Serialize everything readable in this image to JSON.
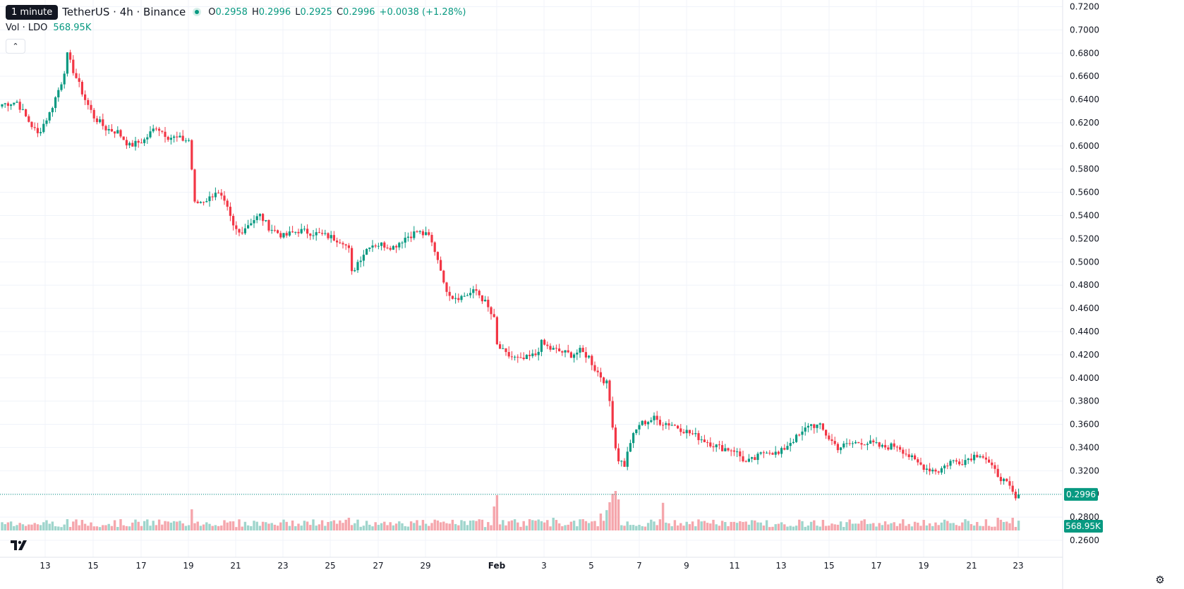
{
  "legend": {
    "tooltip": "1 minute",
    "symbol": "TetherUS · 4h · Binance",
    "open_label": "O",
    "open": "0.2958",
    "high_label": "H",
    "high": "0.2996",
    "low_label": "L",
    "low": "0.2925",
    "close_label": "C",
    "close": "0.2996",
    "change": "+0.0038 (+1.28%)"
  },
  "volume": {
    "label": "Vol · LDO",
    "value": "568.95K"
  },
  "price_tag": "0.2996",
  "volume_tag": "568.95K",
  "colors": {
    "up": "#089981",
    "down": "#f23645",
    "up_vol": "#9fd5cc",
    "down_vol": "#f5a6ac"
  },
  "icons": {
    "logo": "tradingview-logo-icon",
    "collapse": "chevron-up-icon",
    "settings": "gear-icon"
  },
  "chart_data": {
    "type": "candlestick",
    "y_axis": {
      "range": [
        0.25,
        0.72
      ],
      "ticks": [
        "0.7200",
        "0.7000",
        "0.6800",
        "0.6600",
        "0.6400",
        "0.6200",
        "0.6000",
        "0.5800",
        "0.5600",
        "0.5400",
        "0.5200",
        "0.5000",
        "0.4800",
        "0.4600",
        "0.4400",
        "0.4200",
        "0.4000",
        "0.3800",
        "0.3600",
        "0.3400",
        "0.3200",
        "0.3000",
        "0.2800",
        "0.2600"
      ]
    },
    "x_axis": {
      "ticks": [
        "13",
        "15",
        "17",
        "19",
        "21",
        "23",
        "25",
        "27",
        "29",
        "Feb",
        "3",
        "5",
        "7",
        "9",
        "11",
        "13",
        "15",
        "17",
        "19",
        "21",
        "23"
      ]
    },
    "last_price": 0.2996,
    "keyframes": [
      [
        0,
        0.636
      ],
      [
        5,
        0.638
      ],
      [
        8,
        0.625
      ],
      [
        12,
        0.61
      ],
      [
        16,
        0.628
      ],
      [
        20,
        0.655
      ],
      [
        21,
        0.665
      ],
      [
        22,
        0.678
      ],
      [
        24,
        0.665
      ],
      [
        28,
        0.64
      ],
      [
        31,
        0.625
      ],
      [
        35,
        0.615
      ],
      [
        39,
        0.612
      ],
      [
        43,
        0.6
      ],
      [
        48,
        0.605
      ],
      [
        52,
        0.617
      ],
      [
        56,
        0.608
      ],
      [
        62,
        0.605
      ],
      [
        63,
        0.605
      ],
      [
        64,
        0.58
      ],
      [
        65,
        0.55
      ],
      [
        70,
        0.555
      ],
      [
        72,
        0.561
      ],
      [
        74,
        0.555
      ],
      [
        76,
        0.545
      ],
      [
        78,
        0.53
      ],
      [
        80,
        0.525
      ],
      [
        84,
        0.535
      ],
      [
        87,
        0.54
      ],
      [
        90,
        0.53
      ],
      [
        95,
        0.522
      ],
      [
        100,
        0.527
      ],
      [
        105,
        0.525
      ],
      [
        110,
        0.522
      ],
      [
        115,
        0.518
      ],
      [
        117,
        0.51
      ],
      [
        118,
        0.49
      ],
      [
        120,
        0.5
      ],
      [
        124,
        0.515
      ],
      [
        128,
        0.515
      ],
      [
        132,
        0.513
      ],
      [
        136,
        0.521
      ],
      [
        140,
        0.526
      ],
      [
        144,
        0.522
      ],
      [
        146,
        0.51
      ],
      [
        148,
        0.495
      ],
      [
        149,
        0.48
      ],
      [
        152,
        0.47
      ],
      [
        155,
        0.47
      ],
      [
        160,
        0.475
      ],
      [
        163,
        0.465
      ],
      [
        166,
        0.45
      ],
      [
        167,
        0.428
      ],
      [
        170,
        0.42
      ],
      [
        175,
        0.415
      ],
      [
        180,
        0.42
      ],
      [
        182,
        0.43
      ],
      [
        185,
        0.425
      ],
      [
        188,
        0.423
      ],
      [
        192,
        0.42
      ],
      [
        195,
        0.423
      ],
      [
        198,
        0.418
      ],
      [
        200,
        0.408
      ],
      [
        204,
        0.395
      ],
      [
        205,
        0.38
      ],
      [
        206,
        0.36
      ],
      [
        207,
        0.34
      ],
      [
        208,
        0.33
      ],
      [
        210,
        0.325
      ],
      [
        212,
        0.345
      ],
      [
        215,
        0.36
      ],
      [
        218,
        0.363
      ],
      [
        220,
        0.365
      ],
      [
        222,
        0.362
      ],
      [
        226,
        0.36
      ],
      [
        230,
        0.355
      ],
      [
        234,
        0.35
      ],
      [
        238,
        0.345
      ],
      [
        242,
        0.34
      ],
      [
        247,
        0.338
      ],
      [
        251,
        0.327
      ],
      [
        254,
        0.33
      ],
      [
        258,
        0.338
      ],
      [
        262,
        0.334
      ],
      [
        266,
        0.345
      ],
      [
        270,
        0.352
      ],
      [
        272,
        0.36
      ],
      [
        276,
        0.358
      ],
      [
        279,
        0.348
      ],
      [
        282,
        0.34
      ],
      [
        286,
        0.343
      ],
      [
        290,
        0.345
      ],
      [
        294,
        0.343
      ],
      [
        297,
        0.34
      ],
      [
        302,
        0.342
      ],
      [
        305,
        0.335
      ],
      [
        308,
        0.328
      ],
      [
        312,
        0.322
      ],
      [
        316,
        0.32
      ],
      [
        320,
        0.328
      ],
      [
        324,
        0.328
      ],
      [
        327,
        0.332
      ],
      [
        330,
        0.335
      ],
      [
        332,
        0.33
      ],
      [
        334,
        0.322
      ],
      [
        337,
        0.314
      ],
      [
        340,
        0.305
      ],
      [
        342,
        0.2958
      ],
      [
        343,
        0.2996
      ]
    ],
    "volume_spikes": {
      "22": 0.4,
      "64": 0.75,
      "117": 0.45,
      "166": 0.85,
      "167": 1.25,
      "178": 0.4,
      "186": 0.45,
      "196": 0.4,
      "202": 0.6,
      "204": 0.72,
      "205": 1.0,
      "206": 1.3,
      "207": 1.4,
      "208": 1.1,
      "223": 0.98,
      "336": 0.45,
      "341": 0.45
    }
  }
}
